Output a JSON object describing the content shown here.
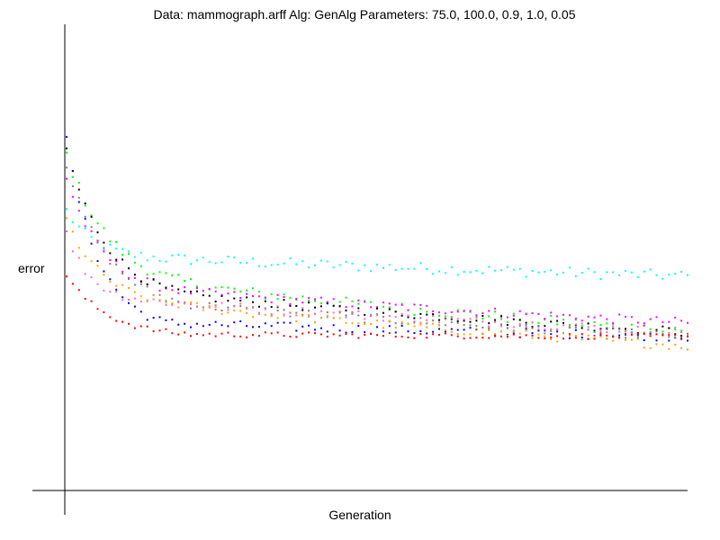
{
  "chart_data": {
    "type": "scatter",
    "title": "Data: mammograph.arff    Alg: GenAlg    Parameters: 75.0, 100.0, 0.9, 1.0, 0.05",
    "xlabel": "Generation",
    "ylabel": "error",
    "xlim": [
      0,
      100
    ],
    "ylim": [
      0,
      1
    ],
    "grid": false,
    "legend": "none",
    "series": [
      {
        "color": "#00ffff",
        "start": 0.6,
        "pattern": "plateau",
        "end": 0.46,
        "plateau_level": 0.5,
        "ramp_end": 14,
        "slow_drift": 0.045,
        "jitter": 0.012,
        "step": 1
      },
      {
        "color": "#00ff00",
        "start": 0.72,
        "pattern": "decay",
        "end": 0.34,
        "plateau_level": 0.44,
        "ramp_end": 22,
        "slow_drift": 0.1,
        "jitter": 0.012,
        "step": 1
      },
      {
        "color": "#ff00ff",
        "start": 0.67,
        "pattern": "decay",
        "end": 0.36,
        "plateau_level": 0.43,
        "ramp_end": 18,
        "slow_drift": 0.06,
        "jitter": 0.01,
        "step": 1
      },
      {
        "color": "#000000",
        "start": 0.73,
        "pattern": "decay",
        "end": 0.34,
        "plateau_level": 0.42,
        "ramp_end": 20,
        "slow_drift": 0.08,
        "jitter": 0.01,
        "step": 1
      },
      {
        "color": "#0000ff",
        "start": 0.75,
        "pattern": "decay",
        "end": 0.33,
        "plateau_level": 0.36,
        "ramp_end": 16,
        "slow_drift": 0.03,
        "jitter": 0.01,
        "step": 1
      },
      {
        "color": "#808080",
        "start": 0.7,
        "pattern": "decay",
        "end": 0.33,
        "plateau_level": 0.4,
        "ramp_end": 20,
        "slow_drift": 0.07,
        "jitter": 0.01,
        "step": 1
      },
      {
        "color": "#ffa500",
        "start": 0.58,
        "pattern": "decay",
        "end": 0.31,
        "plateau_level": 0.4,
        "ramp_end": 18,
        "slow_drift": 0.08,
        "jitter": 0.01,
        "step": 1
      },
      {
        "color": "#ff69b4",
        "start": 0.55,
        "pattern": "decay",
        "end": 0.34,
        "plateau_level": 0.41,
        "ramp_end": 12,
        "slow_drift": 0.07,
        "jitter": 0.01,
        "step": 1
      },
      {
        "color": "#ff0000",
        "start": 0.46,
        "pattern": "decay",
        "end": 0.33,
        "plateau_level": 0.335,
        "ramp_end": 20,
        "slow_drift": 0.0,
        "jitter": 0.006,
        "step": 1
      }
    ]
  }
}
